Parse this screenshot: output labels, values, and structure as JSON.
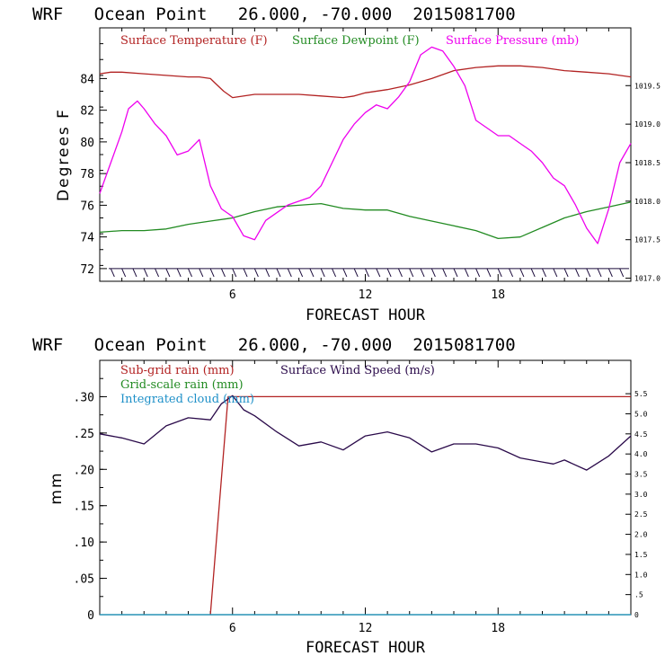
{
  "chart_data": [
    {
      "type": "line",
      "title": "WRF   Ocean Point   26.000, -70.000  2015081700",
      "xlabel": "FORECAST HOUR",
      "ylabel": "Degrees F",
      "xlim": [
        0,
        24
      ],
      "ylim": [
        71.2,
        87.2
      ],
      "y2lim": [
        1016.96,
        1020.25
      ],
      "xticks": [
        "6",
        "12",
        "18"
      ],
      "yticks": [
        "72",
        "74",
        "76",
        "78",
        "80",
        "82",
        "84"
      ],
      "y2ticks": [
        "1017.0",
        "1017.5",
        "1018.0",
        "1018.5",
        "1019.0",
        "1019.5"
      ],
      "series": [
        {
          "name": "Surface Temperature (F)",
          "color": "#b22222",
          "axis": "left",
          "x": [
            0,
            0.5,
            1,
            2,
            3,
            4,
            4.5,
            5,
            5.3,
            5.6,
            6,
            7,
            8,
            9,
            10,
            11,
            11.5,
            12,
            13,
            14,
            15,
            16,
            17,
            18,
            19,
            20,
            21,
            22,
            23,
            24
          ],
          "y": [
            84.3,
            84.4,
            84.4,
            84.3,
            84.2,
            84.1,
            84.1,
            84.0,
            83.6,
            83.2,
            82.8,
            83.0,
            83.0,
            83.0,
            82.9,
            82.8,
            82.9,
            83.1,
            83.3,
            83.6,
            84.0,
            84.5,
            84.7,
            84.8,
            84.8,
            84.7,
            84.5,
            84.4,
            84.3,
            84.1
          ]
        },
        {
          "name": "Surface Dewpoint (F)",
          "color": "#228b22",
          "axis": "left",
          "x": [
            0,
            1,
            2,
            3,
            4,
            5,
            6,
            7,
            8,
            9,
            10,
            11,
            12,
            13,
            14,
            15,
            16,
            17,
            18,
            19,
            20,
            21,
            22,
            23,
            24
          ],
          "y": [
            74.3,
            74.4,
            74.4,
            74.5,
            74.8,
            75.0,
            75.2,
            75.6,
            75.9,
            76.0,
            76.1,
            75.8,
            75.7,
            75.7,
            75.3,
            75.0,
            74.7,
            74.4,
            73.9,
            74.0,
            74.6,
            75.2,
            75.6,
            75.9,
            76.2
          ]
        },
        {
          "name": "Surface Pressure (mb)",
          "color": "#ee00ee",
          "axis": "right",
          "x": [
            0,
            0.5,
            1,
            1.3,
            1.7,
            2,
            2.5,
            3,
            3.5,
            4,
            4.5,
            5,
            5.5,
            6,
            6.5,
            7,
            7.5,
            8,
            8.5,
            9,
            9.5,
            10,
            10.5,
            11,
            11.5,
            12,
            12.5,
            13,
            13.5,
            14,
            14.5,
            15,
            15.5,
            16,
            16.5,
            17,
            17.5,
            18,
            18.5,
            19,
            19.5,
            20,
            20.5,
            21,
            21.5,
            22,
            22.5,
            23,
            23.5,
            24
          ],
          "y": [
            1018.1,
            1018.5,
            1018.9,
            1019.2,
            1019.3,
            1019.2,
            1019.0,
            1018.85,
            1018.6,
            1018.65,
            1018.8,
            1018.2,
            1017.9,
            1017.8,
            1017.55,
            1017.5,
            1017.75,
            1017.85,
            1017.95,
            1018.0,
            1018.05,
            1018.2,
            1018.5,
            1018.8,
            1019.0,
            1019.15,
            1019.25,
            1019.2,
            1019.35,
            1019.55,
            1019.9,
            1020.0,
            1019.95,
            1019.75,
            1019.5,
            1019.05,
            1018.95,
            1018.85,
            1018.85,
            1018.75,
            1018.65,
            1018.5,
            1018.3,
            1018.2,
            1017.95,
            1017.65,
            1017.45,
            1017.9,
            1018.5,
            1018.75
          ]
        }
      ],
      "wind_barbs": "wind barbs along the bottom at 72 F",
      "legend": "top"
    },
    {
      "type": "line",
      "title": "WRF   Ocean Point   26.000, -70.000  2015081700",
      "xlabel": "FORECAST HOUR",
      "ylabel": "mm",
      "xlim": [
        0,
        24
      ],
      "ylim": [
        0,
        0.35
      ],
      "y2lim": [
        0,
        6.33
      ],
      "xticks": [
        "6",
        "12",
        "18"
      ],
      "yticks": [
        "0",
        ".05",
        ".10",
        ".15",
        ".20",
        ".25",
        ".30"
      ],
      "y2ticks": [
        "0",
        ".5",
        "1.0",
        "1.5",
        "2.0",
        "2.5",
        "3.0",
        "3.5",
        "4.0",
        "4.5",
        "5.0",
        "5.5"
      ],
      "series": [
        {
          "name": "Sub-grid rain (mm)",
          "color": "#b22222",
          "axis": "left",
          "x": [
            5.0,
            5.8,
            24
          ],
          "y": [
            0,
            0.3,
            0.3
          ]
        },
        {
          "name": "Grid-scale rain (mm)",
          "color": "#228b22",
          "axis": "left",
          "x": [
            0,
            24
          ],
          "y": [
            0,
            0
          ]
        },
        {
          "name": "Integrated cloud (mm)",
          "color": "#1e90c8",
          "axis": "left",
          "x": [
            0,
            24
          ],
          "y": [
            0,
            0
          ]
        },
        {
          "name": "Surface Wind Speed (m/s)",
          "color": "#2a0a4a",
          "axis": "right",
          "x": [
            0,
            1,
            2,
            3,
            4,
            5,
            5.5,
            6,
            6.5,
            7,
            8,
            9,
            10,
            11,
            12,
            13,
            14,
            15,
            16,
            17,
            18,
            19,
            20,
            20.5,
            21,
            22,
            23,
            24
          ],
          "y": [
            4.5,
            4.4,
            4.25,
            4.7,
            4.9,
            4.85,
            5.25,
            5.45,
            5.1,
            4.95,
            4.55,
            4.2,
            4.3,
            4.1,
            4.45,
            4.55,
            4.4,
            4.05,
            4.25,
            4.25,
            4.15,
            3.9,
            3.8,
            3.75,
            3.85,
            3.6,
            3.95,
            4.45
          ]
        }
      ],
      "legend": "top-left"
    }
  ]
}
